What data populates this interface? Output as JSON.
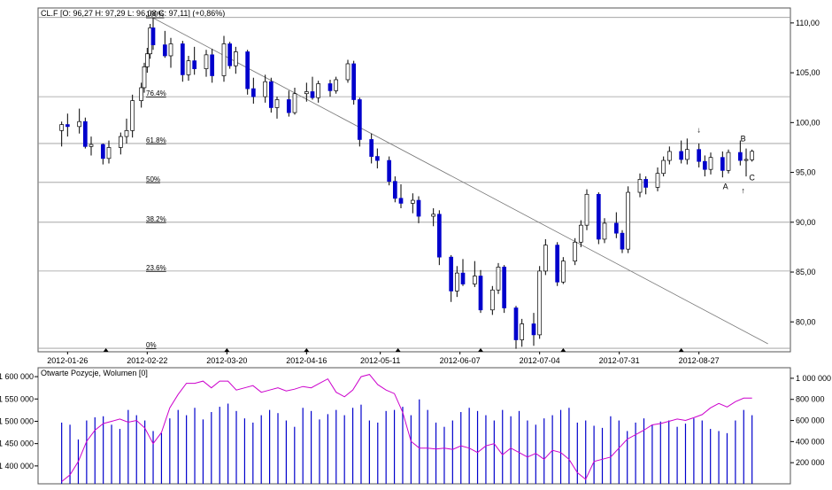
{
  "chart_data": [
    {
      "type": "candlestick",
      "instrument_header": "CL.F [O: 96,27  H: 97,29  L: 96,08  C: 97,11] (+0,86%)",
      "colors": {
        "up_body": "#ffffff",
        "down_body": "#0000cc",
        "wick": "#000000",
        "grid": "#999999"
      },
      "x_tick_labels": [
        "2012-01-26",
        "2012-02-22",
        "2012-03-20",
        "2012-04-16",
        "2012-05-11",
        "2012-06-07",
        "2012-07-04",
        "2012-07-31",
        "2012-08-27"
      ],
      "y_ticks": [
        "110,00",
        "105,00",
        "100,00",
        "95,00",
        "90,00",
        "85,00",
        "80,00"
      ],
      "ylim": [
        77,
        111.5
      ],
      "fibonacci_levels": [
        {
          "label": "100%",
          "value": 110.55
        },
        {
          "label": "76.4%",
          "value": 102.6
        },
        {
          "label": "61.8%",
          "value": 97.9
        },
        {
          "label": "50%",
          "value": 94.0
        },
        {
          "label": "38.2%",
          "value": 90.0
        },
        {
          "label": "23.6%",
          "value": 85.1
        },
        {
          "label": "0%",
          "value": 77.35
        }
      ],
      "trendline": {
        "from": {
          "date": "2012-02-24",
          "value": 110.5
        },
        "to": {
          "date": "2012-09-14",
          "value": 77.8
        }
      },
      "annotations": [
        {
          "text": "A",
          "date": "2012-09-05",
          "value": 93.3
        },
        {
          "text": "B",
          "date": "2012-09-11",
          "value": 98.1
        },
        {
          "text": "C",
          "date": "2012-09-14",
          "value": 94.2
        },
        {
          "text": "↓",
          "date": "2012-08-27",
          "value": 99.0
        },
        {
          "text": "↑",
          "date": "2012-09-11",
          "value": 92.9
        }
      ],
      "candles": [
        {
          "d": "2012-01-24",
          "o": 99.2,
          "h": 100.1,
          "l": 97.6,
          "c": 99.8
        },
        {
          "d": "2012-01-26",
          "o": 99.8,
          "h": 100.9,
          "l": 98.6,
          "c": 99.6
        },
        {
          "d": "2012-01-30",
          "o": 99.6,
          "h": 101.4,
          "l": 98.9,
          "c": 100.1
        },
        {
          "d": "2012-02-01",
          "o": 100.1,
          "h": 100.5,
          "l": 97.4,
          "c": 97.6
        },
        {
          "d": "2012-02-03",
          "o": 97.6,
          "h": 98.6,
          "l": 96.7,
          "c": 97.8
        },
        {
          "d": "2012-02-07",
          "o": 97.8,
          "h": 97.9,
          "l": 95.8,
          "c": 96.4
        },
        {
          "d": "2012-02-09",
          "o": 96.4,
          "h": 98.2,
          "l": 95.9,
          "c": 97.5
        },
        {
          "d": "2012-02-13",
          "o": 97.5,
          "h": 99.0,
          "l": 96.8,
          "c": 98.6
        },
        {
          "d": "2012-02-15",
          "o": 98.6,
          "h": 100.4,
          "l": 97.9,
          "c": 99.2
        },
        {
          "d": "2012-02-17",
          "o": 99.2,
          "h": 102.8,
          "l": 98.5,
          "c": 102.2
        },
        {
          "d": "2012-02-20",
          "o": 102.2,
          "h": 104.0,
          "l": 101.5,
          "c": 103.5
        },
        {
          "d": "2012-02-21",
          "o": 103.5,
          "h": 106.0,
          "l": 103.0,
          "c": 105.6
        },
        {
          "d": "2012-02-22",
          "o": 105.6,
          "h": 107.5,
          "l": 105.0,
          "c": 106.9
        },
        {
          "d": "2012-02-23",
          "o": 106.9,
          "h": 109.9,
          "l": 106.4,
          "c": 109.5
        },
        {
          "d": "2012-02-24",
          "o": 109.5,
          "h": 110.5,
          "l": 107.3,
          "c": 107.8
        },
        {
          "d": "2012-02-28",
          "o": 107.8,
          "h": 109.2,
          "l": 106.5,
          "c": 106.7
        },
        {
          "d": "2012-03-01",
          "o": 106.7,
          "h": 108.5,
          "l": 105.5,
          "c": 107.9
        },
        {
          "d": "2012-03-05",
          "o": 107.9,
          "h": 108.2,
          "l": 104.1,
          "c": 104.8
        },
        {
          "d": "2012-03-07",
          "o": 104.8,
          "h": 106.7,
          "l": 104.2,
          "c": 106.2
        },
        {
          "d": "2012-03-09",
          "o": 106.2,
          "h": 107.6,
          "l": 104.8,
          "c": 105.4
        },
        {
          "d": "2012-03-13",
          "o": 105.4,
          "h": 107.3,
          "l": 104.6,
          "c": 106.8
        },
        {
          "d": "2012-03-15",
          "o": 106.8,
          "h": 107.4,
          "l": 104.0,
          "c": 104.7
        },
        {
          "d": "2012-03-19",
          "o": 104.7,
          "h": 108.7,
          "l": 104.1,
          "c": 107.9
        },
        {
          "d": "2012-03-21",
          "o": 107.9,
          "h": 108.1,
          "l": 105.4,
          "c": 105.7
        },
        {
          "d": "2012-03-23",
          "o": 105.7,
          "h": 107.6,
          "l": 104.9,
          "c": 107.1
        },
        {
          "d": "2012-03-27",
          "o": 107.1,
          "h": 107.3,
          "l": 102.8,
          "c": 103.4
        },
        {
          "d": "2012-03-29",
          "o": 103.4,
          "h": 104.5,
          "l": 101.9,
          "c": 102.6
        },
        {
          "d": "2012-04-02",
          "o": 102.6,
          "h": 104.8,
          "l": 102.0,
          "c": 104.1
        },
        {
          "d": "2012-04-04",
          "o": 104.1,
          "h": 104.5,
          "l": 101.0,
          "c": 101.5
        },
        {
          "d": "2012-04-06",
          "o": 101.5,
          "h": 102.6,
          "l": 100.4,
          "c": 102.3
        },
        {
          "d": "2012-04-10",
          "o": 102.3,
          "h": 103.2,
          "l": 100.6,
          "c": 101.0
        },
        {
          "d": "2012-04-12",
          "o": 101.0,
          "h": 103.5,
          "l": 100.8,
          "c": 102.9
        },
        {
          "d": "2012-04-16",
          "o": 102.9,
          "h": 104.0,
          "l": 102.1,
          "c": 103.1
        },
        {
          "d": "2012-04-18",
          "o": 103.1,
          "h": 104.6,
          "l": 102.3,
          "c": 102.5
        },
        {
          "d": "2012-04-20",
          "o": 102.5,
          "h": 104.2,
          "l": 102.0,
          "c": 103.9
        },
        {
          "d": "2012-04-24",
          "o": 103.9,
          "h": 104.3,
          "l": 102.6,
          "c": 103.2
        },
        {
          "d": "2012-04-26",
          "o": 103.2,
          "h": 104.6,
          "l": 102.9,
          "c": 104.3
        },
        {
          "d": "2012-04-30",
          "o": 104.3,
          "h": 106.3,
          "l": 104.0,
          "c": 105.9
        },
        {
          "d": "2012-05-02",
          "o": 105.9,
          "h": 106.2,
          "l": 101.8,
          "c": 102.3
        },
        {
          "d": "2012-05-04",
          "o": 102.3,
          "h": 102.5,
          "l": 97.6,
          "c": 98.3
        },
        {
          "d": "2012-05-08",
          "o": 98.3,
          "h": 98.9,
          "l": 95.9,
          "c": 96.6
        },
        {
          "d": "2012-05-10",
          "o": 96.6,
          "h": 97.4,
          "l": 95.4,
          "c": 96.2
        },
        {
          "d": "2012-05-14",
          "o": 96.2,
          "h": 96.6,
          "l": 93.7,
          "c": 94.1
        },
        {
          "d": "2012-05-16",
          "o": 94.1,
          "h": 94.6,
          "l": 92.0,
          "c": 92.4
        },
        {
          "d": "2012-05-18",
          "o": 92.4,
          "h": 93.8,
          "l": 91.4,
          "c": 91.9
        },
        {
          "d": "2012-05-22",
          "o": 91.9,
          "h": 92.9,
          "l": 90.9,
          "c": 92.2
        },
        {
          "d": "2012-05-24",
          "o": 92.2,
          "h": 92.6,
          "l": 89.9,
          "c": 90.6
        },
        {
          "d": "2012-05-29",
          "o": 90.6,
          "h": 91.4,
          "l": 89.6,
          "c": 90.8
        },
        {
          "d": "2012-05-31",
          "o": 90.8,
          "h": 91.2,
          "l": 85.7,
          "c": 86.5
        },
        {
          "d": "2012-06-04",
          "o": 86.5,
          "h": 86.7,
          "l": 82.0,
          "c": 83.1
        },
        {
          "d": "2012-06-06",
          "o": 83.1,
          "h": 85.6,
          "l": 82.5,
          "c": 84.9
        },
        {
          "d": "2012-06-08",
          "o": 84.9,
          "h": 86.3,
          "l": 83.6,
          "c": 83.8
        },
        {
          "d": "2012-06-12",
          "o": 83.8,
          "h": 86.1,
          "l": 83.5,
          "c": 84.6
        },
        {
          "d": "2012-06-14",
          "o": 84.6,
          "h": 85.2,
          "l": 80.9,
          "c": 81.2
        },
        {
          "d": "2012-06-18",
          "o": 81.2,
          "h": 83.6,
          "l": 80.7,
          "c": 83.2
        },
        {
          "d": "2012-06-20",
          "o": 83.2,
          "h": 85.9,
          "l": 82.8,
          "c": 85.5
        },
        {
          "d": "2012-06-22",
          "o": 85.5,
          "h": 85.7,
          "l": 80.9,
          "c": 81.4
        },
        {
          "d": "2012-06-26",
          "o": 81.4,
          "h": 81.6,
          "l": 77.3,
          "c": 78.2
        },
        {
          "d": "2012-06-28",
          "o": 78.2,
          "h": 80.3,
          "l": 77.5,
          "c": 79.8
        },
        {
          "d": "2012-07-02",
          "o": 79.8,
          "h": 80.9,
          "l": 77.6,
          "c": 78.7
        },
        {
          "d": "2012-07-04",
          "o": 78.7,
          "h": 85.6,
          "l": 78.3,
          "c": 85.1
        },
        {
          "d": "2012-07-06",
          "o": 85.1,
          "h": 88.3,
          "l": 84.7,
          "c": 87.7
        },
        {
          "d": "2012-07-10",
          "o": 87.7,
          "h": 88.0,
          "l": 83.6,
          "c": 84.0
        },
        {
          "d": "2012-07-12",
          "o": 84.0,
          "h": 86.5,
          "l": 83.8,
          "c": 86.1
        },
        {
          "d": "2012-07-16",
          "o": 86.1,
          "h": 88.4,
          "l": 85.7,
          "c": 88.0
        },
        {
          "d": "2012-07-18",
          "o": 88.0,
          "h": 90.2,
          "l": 87.5,
          "c": 89.7
        },
        {
          "d": "2012-07-20",
          "o": 89.7,
          "h": 93.3,
          "l": 89.2,
          "c": 92.8
        },
        {
          "d": "2012-07-24",
          "o": 92.8,
          "h": 93.0,
          "l": 87.8,
          "c": 88.3
        },
        {
          "d": "2012-07-26",
          "o": 88.3,
          "h": 90.4,
          "l": 87.9,
          "c": 89.9
        },
        {
          "d": "2012-07-30",
          "o": 89.9,
          "h": 91.0,
          "l": 88.4,
          "c": 88.9
        },
        {
          "d": "2012-08-01",
          "o": 88.9,
          "h": 89.2,
          "l": 86.9,
          "c": 87.3
        },
        {
          "d": "2012-08-03",
          "o": 87.3,
          "h": 93.6,
          "l": 86.9,
          "c": 93.0
        },
        {
          "d": "2012-08-07",
          "o": 93.0,
          "h": 94.9,
          "l": 92.5,
          "c": 94.3
        },
        {
          "d": "2012-08-09",
          "o": 94.3,
          "h": 94.6,
          "l": 92.8,
          "c": 93.5
        },
        {
          "d": "2012-08-13",
          "o": 93.5,
          "h": 95.5,
          "l": 93.1,
          "c": 94.9
        },
        {
          "d": "2012-08-15",
          "o": 94.9,
          "h": 96.6,
          "l": 94.6,
          "c": 96.2
        },
        {
          "d": "2012-08-17",
          "o": 96.2,
          "h": 97.6,
          "l": 95.8,
          "c": 97.1
        },
        {
          "d": "2012-08-21",
          "o": 97.1,
          "h": 98.2,
          "l": 95.9,
          "c": 96.3
        },
        {
          "d": "2012-08-23",
          "o": 96.3,
          "h": 98.4,
          "l": 95.8,
          "c": 97.3
        },
        {
          "d": "2012-08-27",
          "o": 97.3,
          "h": 97.9,
          "l": 95.5,
          "c": 96.1
        },
        {
          "d": "2012-08-29",
          "o": 96.1,
          "h": 96.7,
          "l": 94.6,
          "c": 95.3
        },
        {
          "d": "2012-08-31",
          "o": 95.3,
          "h": 97.0,
          "l": 94.8,
          "c": 96.5
        },
        {
          "d": "2012-09-04",
          "o": 96.5,
          "h": 97.1,
          "l": 94.5,
          "c": 95.2
        },
        {
          "d": "2012-09-06",
          "o": 95.2,
          "h": 97.3,
          "l": 94.9,
          "c": 97.0
        },
        {
          "d": "2012-09-10",
          "o": 97.0,
          "h": 98.2,
          "l": 95.7,
          "c": 96.2
        },
        {
          "d": "2012-09-12",
          "o": 96.2,
          "h": 97.4,
          "l": 94.6,
          "c": 96.3
        },
        {
          "d": "2012-09-14",
          "o": 96.27,
          "h": 97.29,
          "l": 96.08,
          "c": 97.11
        }
      ]
    },
    {
      "type": "bar+line",
      "title": "Otwarte Pozycje, Wolumen [0]",
      "left_axis_ticks": [
        "1 600 000",
        "1 550 000",
        "1 500 000",
        "1 450 000",
        "1 400 000"
      ],
      "left_ylim": [
        1360000,
        1620000
      ],
      "right_axis_ticks": [
        "1 000 000",
        "800 000",
        "600 000",
        "400 000",
        "200 000"
      ],
      "right_ylim": [
        0,
        1100000
      ],
      "colors": {
        "open_interest_line": "#cc00cc",
        "volume_bars": "#0000cc"
      },
      "open_interest": [
        1365000,
        1380000,
        1410000,
        1455000,
        1480000,
        1495000,
        1500000,
        1505000,
        1498000,
        1502000,
        1485000,
        1450000,
        1475000,
        1530000,
        1560000,
        1585000,
        1585000,
        1590000,
        1575000,
        1590000,
        1590000,
        1570000,
        1575000,
        1580000,
        1565000,
        1570000,
        1575000,
        1568000,
        1572000,
        1578000,
        1575000,
        1585000,
        1595000,
        1565000,
        1555000,
        1570000,
        1600000,
        1605000,
        1582000,
        1570000,
        1562000,
        1520000,
        1455000,
        1440000,
        1440000,
        1438000,
        1440000,
        1437000,
        1445000,
        1440000,
        1430000,
        1445000,
        1450000,
        1425000,
        1440000,
        1430000,
        1420000,
        1428000,
        1415000,
        1435000,
        1430000,
        1415000,
        1385000,
        1370000,
        1410000,
        1415000,
        1420000,
        1440000,
        1460000,
        1470000,
        1480000,
        1492000,
        1495000,
        1500000,
        1505000,
        1502000,
        1508000,
        1515000,
        1530000,
        1540000,
        1532000,
        1544000,
        1552000,
        1552000
      ],
      "volume": [
        580000,
        560000,
        420000,
        600000,
        630000,
        640000,
        560000,
        520000,
        700000,
        650000,
        600000,
        500000,
        480000,
        620000,
        700000,
        650000,
        720000,
        610000,
        680000,
        730000,
        760000,
        690000,
        620000,
        580000,
        650000,
        700000,
        670000,
        600000,
        540000,
        720000,
        690000,
        610000,
        660000,
        700000,
        650000,
        720000,
        750000,
        600000,
        580000,
        690000,
        700000,
        730000,
        650000,
        800000,
        700000,
        580000,
        540000,
        600000,
        680000,
        720000,
        690000,
        650000,
        600000,
        700000,
        640000,
        690000,
        600000,
        560000,
        620000,
        650000,
        700000,
        720000,
        580000,
        600000,
        550000,
        530000,
        640000,
        600000,
        500000,
        580000,
        620000,
        560000,
        590000,
        600000,
        540000,
        570000,
        620000,
        600000,
        520000,
        500000,
        480000,
        600000,
        700000,
        650000
      ]
    }
  ]
}
